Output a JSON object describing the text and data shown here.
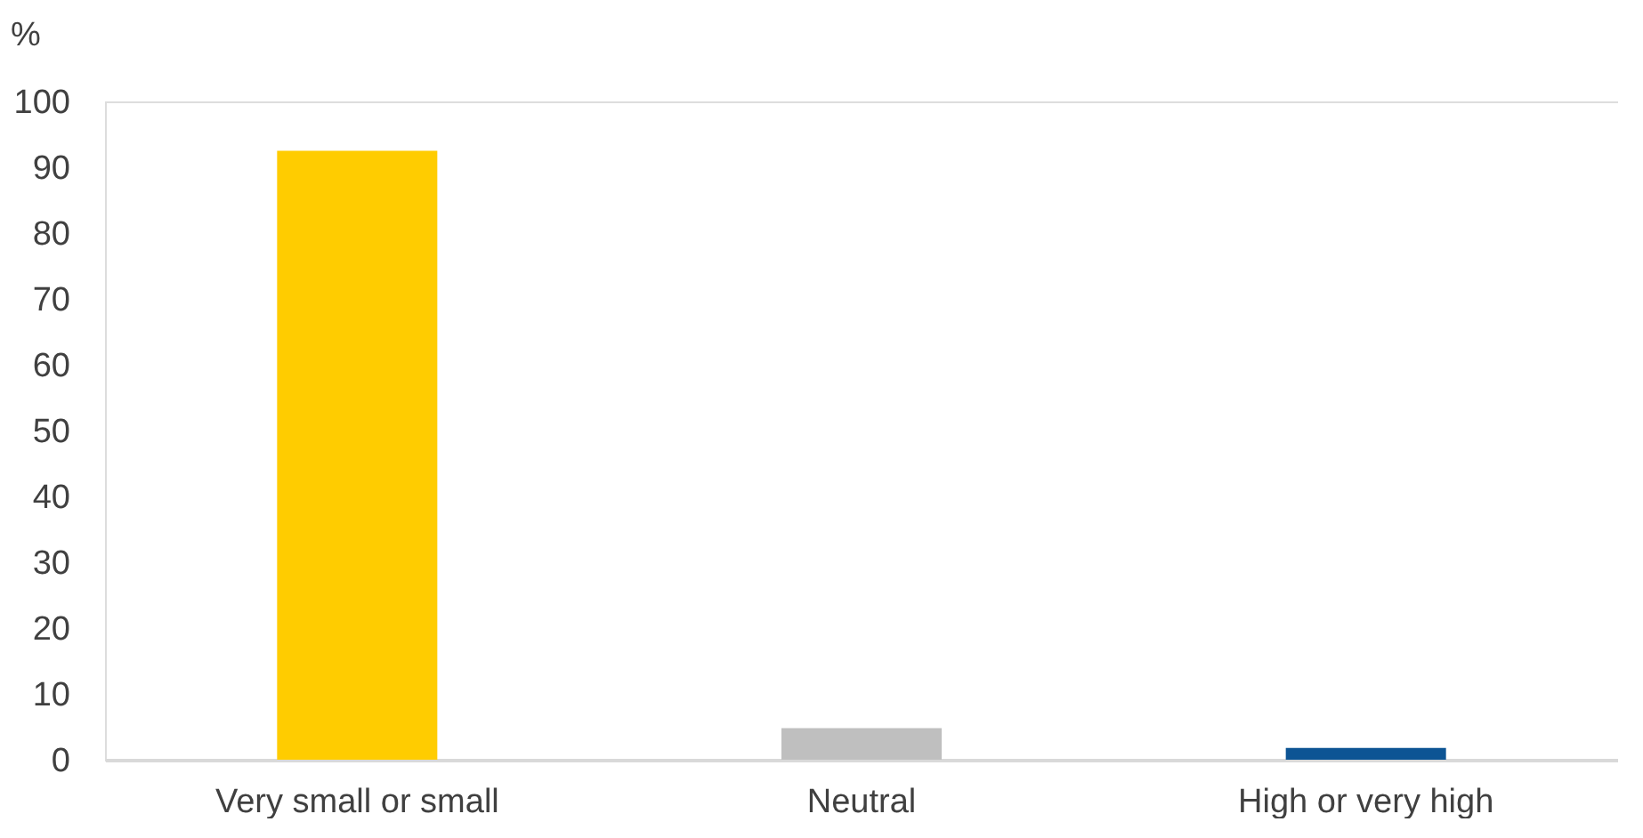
{
  "chart_data": {
    "type": "bar",
    "ylabel": "%",
    "categories": [
      "Very small or small",
      "Neutral",
      "High or very high"
    ],
    "values": [
      92.5,
      4.8,
      1.8
    ],
    "colors": [
      "#ffcc00",
      "#bfbfbf",
      "#0d5494"
    ],
    "ylim": [
      0,
      100
    ],
    "yticks": [
      0,
      10,
      20,
      30,
      40,
      50,
      60,
      70,
      80,
      90,
      100
    ],
    "grid": false,
    "legend": false
  }
}
